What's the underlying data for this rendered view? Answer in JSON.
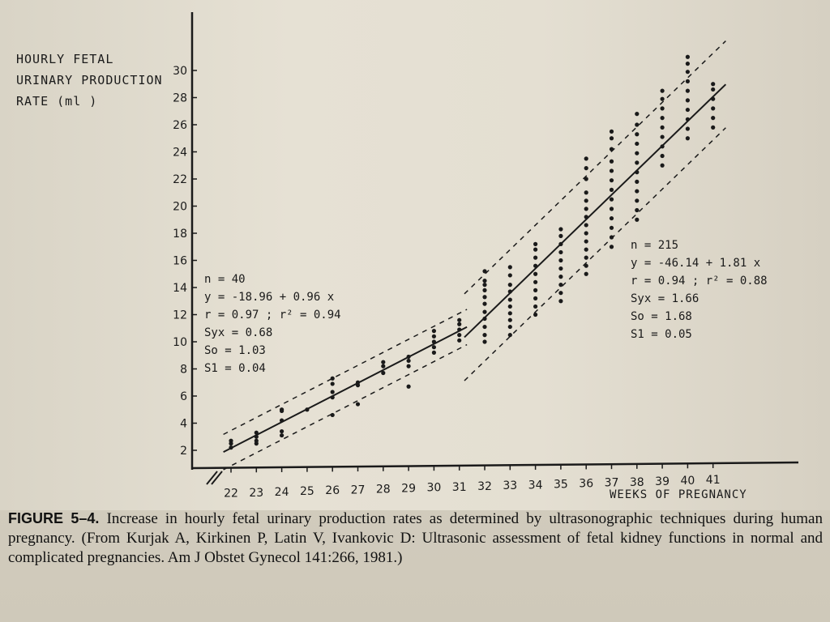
{
  "chart_data": {
    "type": "scatter",
    "ylabel_lines": [
      "HOURLY FETAL",
      "URINARY PRODUCTION",
      "RATE  (ml )"
    ],
    "xlabel": "WEEKS OF PREGNANCY",
    "x_ticks": [
      22,
      23,
      24,
      25,
      26,
      27,
      28,
      29,
      30,
      31,
      32,
      33,
      34,
      35,
      36,
      37,
      38,
      39,
      40,
      41
    ],
    "y_ticks": [
      2,
      4,
      6,
      8,
      10,
      12,
      14,
      16,
      18,
      20,
      22,
      24,
      26,
      28,
      30
    ],
    "xlim": [
      21.3,
      41.8
    ],
    "ylim": [
      0,
      31
    ],
    "grid": false,
    "series": [
      {
        "range": "22-31",
        "stats_lines": [
          "n = 40",
          "y = -18.96 + 0.96 x",
          "r = 0.97 ; r² = 0.94",
          "Syx = 0.68",
          "So = 1.03",
          "S1 = 0.04"
        ],
        "intercept": -18.96,
        "slope": 0.96,
        "points": [
          [
            22,
            2.2
          ],
          [
            22,
            2.5
          ],
          [
            22,
            2.7
          ],
          [
            23,
            2.5
          ],
          [
            23,
            3.0
          ],
          [
            23,
            3.3
          ],
          [
            23,
            2.7
          ],
          [
            24,
            3.1
          ],
          [
            24,
            3.4
          ],
          [
            24,
            4.2
          ],
          [
            24,
            4.9
          ],
          [
            24,
            5.0
          ],
          [
            25,
            5.0
          ],
          [
            26,
            4.6
          ],
          [
            26,
            5.9
          ],
          [
            26,
            6.3
          ],
          [
            26,
            6.9
          ],
          [
            26,
            7.3
          ],
          [
            27,
            5.4
          ],
          [
            27,
            6.8
          ],
          [
            27,
            7.0
          ],
          [
            28,
            7.7
          ],
          [
            28,
            8.2
          ],
          [
            28,
            8.5
          ],
          [
            29,
            6.7
          ],
          [
            29,
            8.2
          ],
          [
            29,
            8.6
          ],
          [
            29,
            8.9
          ],
          [
            30,
            9.2
          ],
          [
            30,
            9.6
          ],
          [
            30,
            10.0
          ],
          [
            30,
            10.4
          ],
          [
            30,
            10.8
          ],
          [
            31,
            10.1
          ],
          [
            31,
            10.5
          ],
          [
            31,
            10.9
          ],
          [
            31,
            11.3
          ],
          [
            31,
            11.6
          ]
        ]
      },
      {
        "range": "32-41",
        "stats_lines": [
          "n = 215",
          "y = -46.14 + 1.81 x",
          "r = 0.94 ; r² = 0.88",
          "Syx = 1.66",
          "So = 1.68",
          "S1 = 0.05"
        ],
        "intercept": -46.14,
        "slope": 1.81,
        "points": [
          [
            32,
            10.0
          ],
          [
            32,
            10.5
          ],
          [
            32,
            11.1
          ],
          [
            32,
            11.7
          ],
          [
            32,
            12.2
          ],
          [
            32,
            12.8
          ],
          [
            32,
            13.3
          ],
          [
            32,
            13.8
          ],
          [
            32,
            14.2
          ],
          [
            32,
            14.5
          ],
          [
            32,
            15.2
          ],
          [
            33,
            10.5
          ],
          [
            33,
            11.1
          ],
          [
            33,
            11.6
          ],
          [
            33,
            12.1
          ],
          [
            33,
            12.6
          ],
          [
            33,
            13.1
          ],
          [
            33,
            13.7
          ],
          [
            33,
            14.2
          ],
          [
            33,
            14.9
          ],
          [
            33,
            15.5
          ],
          [
            34,
            12.0
          ],
          [
            34,
            12.6
          ],
          [
            34,
            13.2
          ],
          [
            34,
            13.8
          ],
          [
            34,
            14.4
          ],
          [
            34,
            15.0
          ],
          [
            34,
            15.6
          ],
          [
            34,
            16.2
          ],
          [
            34,
            16.8
          ],
          [
            34,
            17.2
          ],
          [
            35,
            13.0
          ],
          [
            35,
            13.6
          ],
          [
            35,
            14.2
          ],
          [
            35,
            14.8
          ],
          [
            35,
            15.4
          ],
          [
            35,
            16.0
          ],
          [
            35,
            16.6
          ],
          [
            35,
            17.2
          ],
          [
            35,
            17.8
          ],
          [
            35,
            18.3
          ],
          [
            36,
            15.0
          ],
          [
            36,
            15.6
          ],
          [
            36,
            16.2
          ],
          [
            36,
            16.8
          ],
          [
            36,
            17.4
          ],
          [
            36,
            18.0
          ],
          [
            36,
            18.6
          ],
          [
            36,
            19.2
          ],
          [
            36,
            19.8
          ],
          [
            36,
            20.4
          ],
          [
            36,
            21.0
          ],
          [
            36,
            22.0
          ],
          [
            36,
            22.8
          ],
          [
            36,
            23.5
          ],
          [
            37,
            17.0
          ],
          [
            37,
            17.7
          ],
          [
            37,
            18.4
          ],
          [
            37,
            19.1
          ],
          [
            37,
            19.8
          ],
          [
            37,
            20.5
          ],
          [
            37,
            21.2
          ],
          [
            37,
            21.9
          ],
          [
            37,
            22.6
          ],
          [
            37,
            23.3
          ],
          [
            37,
            24.2
          ],
          [
            37,
            25.0
          ],
          [
            37,
            25.5
          ],
          [
            38,
            19.0
          ],
          [
            38,
            19.7
          ],
          [
            38,
            20.4
          ],
          [
            38,
            21.1
          ],
          [
            38,
            21.8
          ],
          [
            38,
            22.5
          ],
          [
            38,
            23.2
          ],
          [
            38,
            23.9
          ],
          [
            38,
            24.6
          ],
          [
            38,
            25.3
          ],
          [
            38,
            26.0
          ],
          [
            38,
            26.8
          ],
          [
            39,
            23.0
          ],
          [
            39,
            23.7
          ],
          [
            39,
            24.4
          ],
          [
            39,
            25.1
          ],
          [
            39,
            25.8
          ],
          [
            39,
            26.5
          ],
          [
            39,
            27.2
          ],
          [
            39,
            27.9
          ],
          [
            39,
            28.5
          ],
          [
            40,
            25.0
          ],
          [
            40,
            25.7
          ],
          [
            40,
            26.4
          ],
          [
            40,
            27.1
          ],
          [
            40,
            27.8
          ],
          [
            40,
            28.5
          ],
          [
            40,
            29.2
          ],
          [
            40,
            29.9
          ],
          [
            40,
            30.5
          ],
          [
            40,
            31.0
          ],
          [
            41,
            25.8
          ],
          [
            41,
            26.5
          ],
          [
            41,
            27.2
          ],
          [
            41,
            27.9
          ],
          [
            41,
            28.6
          ],
          [
            41,
            29.0
          ]
        ]
      }
    ],
    "confidence_band": "dashed"
  },
  "caption": {
    "label": "FIGURE 5–4.",
    "text": " Increase in hourly fetal urinary production rates as determined by ultrasonographic techniques during human pregnancy. (From Kurjak A, Kirkinen P, Latin V, Ivankovic D: Ultrasonic assessment of fetal kidney functions in normal and complicated pregnancies. Am J Obstet Gynecol 141:266, 1981.)"
  },
  "colors": {
    "ink": "#1a1a1a",
    "paper": "#e4dfd2",
    "page": "#d3cdbf"
  }
}
